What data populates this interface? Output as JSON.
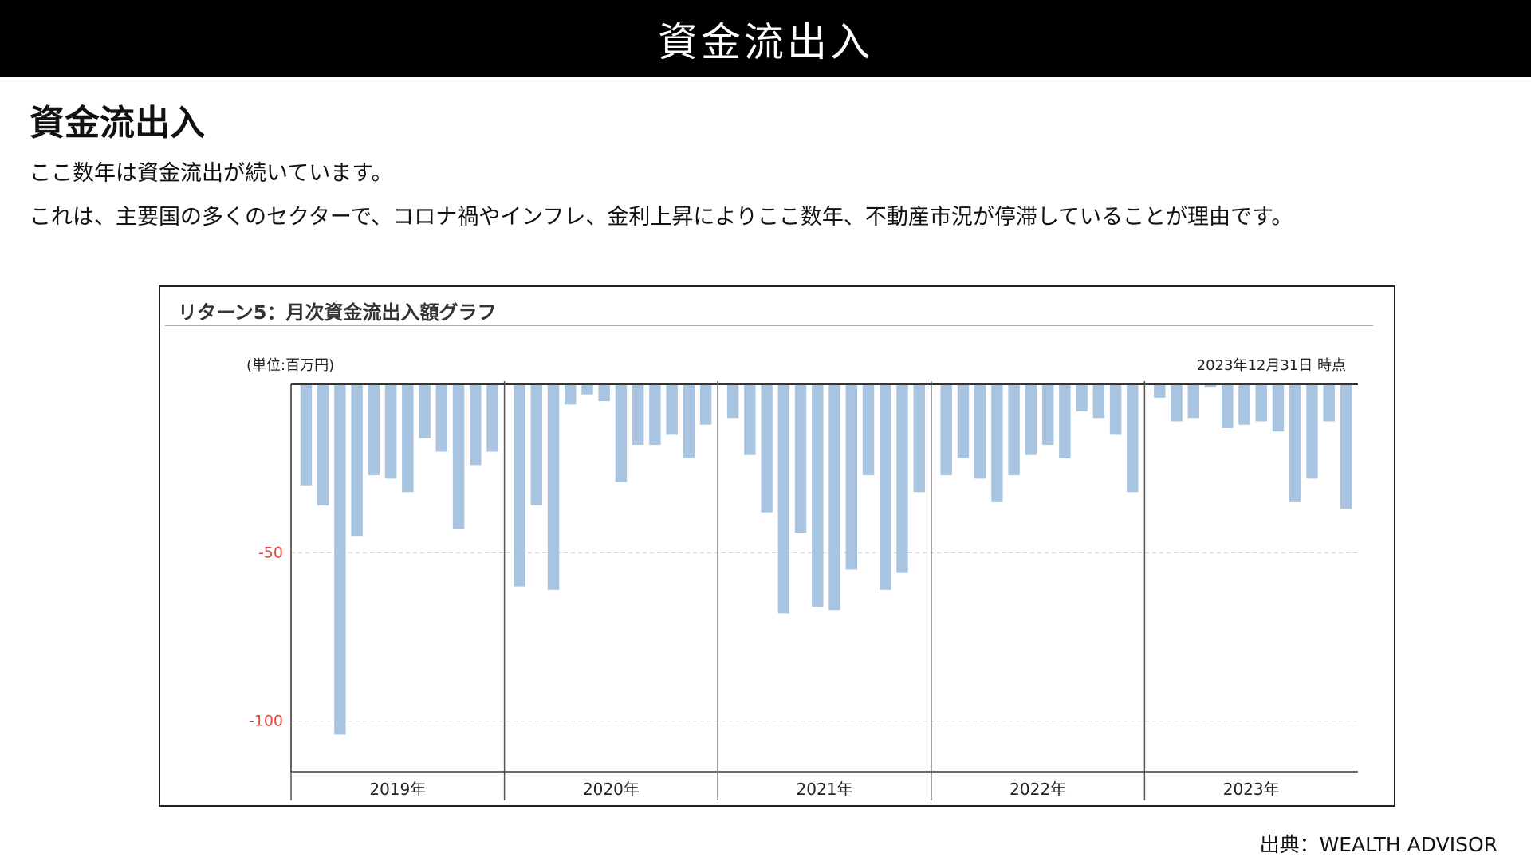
{
  "header": {
    "title": "資金流出入"
  },
  "section": {
    "heading": "資金流出入",
    "paragraphs": [
      "ここ数年は資金流出が続いています。",
      "これは、主要国の多くのセクターで、コロナ禍やインフレ、金利上昇によりここ数年、不動産市況が停滞していることが理由です。"
    ]
  },
  "chart_data": {
    "type": "bar",
    "title": "リターン5：月次資金流出入額グラフ",
    "unit_label": "(単位:百万円)",
    "as_of": "2023年12月31日 時点",
    "ylim": [
      -115,
      0
    ],
    "yticks": [
      -50,
      -100
    ],
    "ytick_labels": [
      "-50",
      "-100"
    ],
    "grid": true,
    "bar_color": "#a9c4e0",
    "tick_label_color": "#e8463a",
    "years": [
      "2019年",
      "2020年",
      "2021年",
      "2022年",
      "2023年"
    ],
    "series": [
      {
        "values": [
          -30,
          -36,
          -104,
          -45,
          -27,
          -28,
          -32,
          -16,
          -20,
          -43,
          -24,
          -20,
          -60,
          -36,
          -61,
          -6,
          -3,
          -5,
          -29,
          -18,
          -18,
          -15,
          -22,
          -12,
          -10,
          -21,
          -38,
          -68,
          -44,
          -66,
          -67,
          -55,
          -27,
          -61,
          -56,
          -32,
          -27,
          -22,
          -28,
          -35,
          -27,
          -21,
          -18,
          -22,
          -8,
          -10,
          -15,
          -32,
          -4,
          -11,
          -10,
          -1,
          -13,
          -12,
          -11,
          -14,
          -35,
          -28,
          -11,
          -37
        ]
      }
    ]
  },
  "footer": {
    "source": "出典：WEALTH ADVISOR"
  }
}
